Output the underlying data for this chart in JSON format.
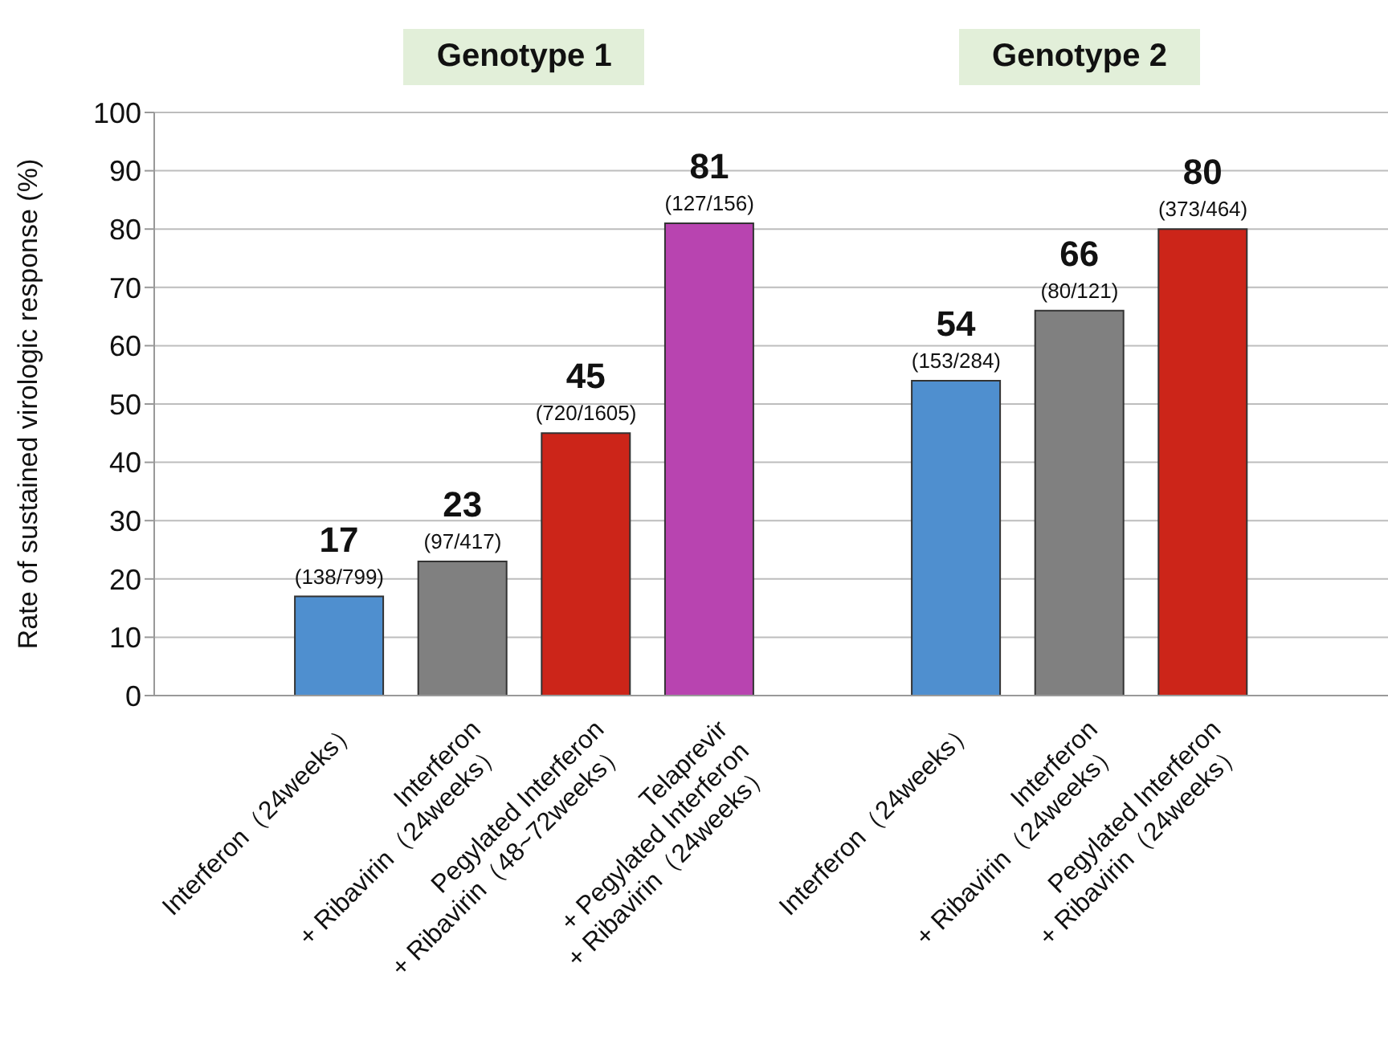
{
  "chart_data": {
    "type": "bar",
    "categories": [
      null,
      "Interferon（24weeks）",
      "Interferon\n+ Ribavirin（24weeks）",
      "Pegylated Interferon\n+ Ribavirin（48~72weeks）",
      "Telaprevir\n+ Pegylated Interferon\n+ Ribavirin（24weeks）",
      null,
      "Interferon（24weeks）",
      "Interferon\n+ Ribavirin（24weeks）",
      "Pegylated Interferon\n+ Ribavirin（24weeks）",
      null
    ],
    "values": [
      null,
      17,
      23,
      45,
      81,
      null,
      54,
      66,
      80,
      null
    ],
    "colors": [
      null,
      "#4f8fcf",
      "#808080",
      "#cc2519",
      "#b844b0",
      null,
      "#4f8fcf",
      "#808080",
      "#cc2519",
      null
    ],
    "ylabel": "Rate of sustained virologic response (%)",
    "ylim": [
      0,
      100
    ],
    "yticks": [
      0,
      10,
      20,
      30,
      40,
      50,
      60,
      70,
      80,
      90,
      100
    ],
    "grid": "y",
    "data_labels": true,
    "annotations": [
      "Genotype 1",
      "Genotype 2",
      {
        "text": "(138/799)",
        "x": "Interferon（24weeks）",
        "y": 17
      },
      {
        "text": "(97/417)",
        "x": "Interferon\n+ Ribavirin（24weeks）",
        "y": 23
      },
      {
        "text": "(720/1605)",
        "x": "Pegylated Interferon\n+ Ribavirin（48~72weeks）",
        "y": 45
      },
      {
        "text": "(127/156)",
        "x": "Telaprevir\n+ Pegylated Interferon\n+ Ribavirin（24weeks）",
        "y": 81
      },
      "(153/284)",
      "(80/121)",
      {
        "text": "(373/464)",
        "x": "Pegylated Interferon\n+ Ribavirin（24weeks）",
        "y": 80
      }
    ]
  }
}
